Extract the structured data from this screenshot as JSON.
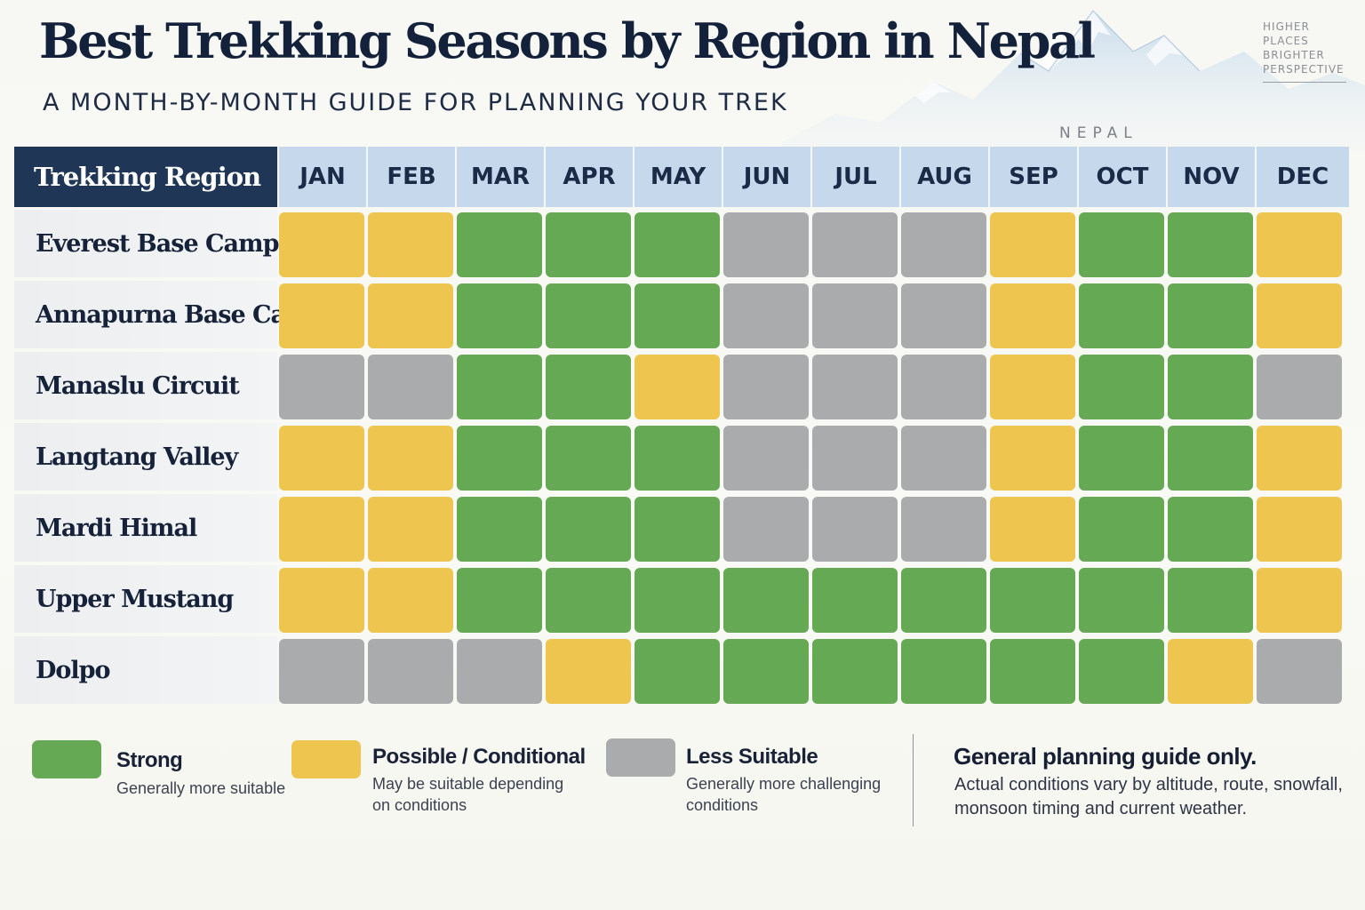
{
  "title": "Best Trekking Seasons by Region in Nepal",
  "subtitle": "A MONTH-BY-MONTH GUIDE FOR PLANNING YOUR TREK",
  "tagline": [
    "HIGHER",
    "PLACES",
    "BRIGHTER",
    "PERSPECTIVE"
  ],
  "backdrop_label": "NEPAL",
  "colors": {
    "strong": "#66a955",
    "possible": "#eec54f",
    "less": "#a9abad",
    "header_dark": "#203656",
    "header_light": "#c6d8ec"
  },
  "chart_data": {
    "type": "heatmap",
    "row_header": "Trekking Region",
    "columns": [
      "JAN",
      "FEB",
      "MAR",
      "APR",
      "MAY",
      "JUN",
      "JUL",
      "AUG",
      "SEP",
      "OCT",
      "NOV",
      "DEC"
    ],
    "rows": [
      {
        "region": "Everest Base Camp",
        "values": [
          "possible",
          "possible",
          "strong",
          "strong",
          "strong",
          "less",
          "less",
          "less",
          "possible",
          "strong",
          "strong",
          "possible"
        ]
      },
      {
        "region": "Annapurna Base Camp",
        "values": [
          "possible",
          "possible",
          "strong",
          "strong",
          "strong",
          "less",
          "less",
          "less",
          "possible",
          "strong",
          "strong",
          "possible"
        ]
      },
      {
        "region": "Manaslu Circuit",
        "values": [
          "less",
          "less",
          "strong",
          "strong",
          "possible",
          "less",
          "less",
          "less",
          "possible",
          "strong",
          "strong",
          "less"
        ]
      },
      {
        "region": "Langtang Valley",
        "values": [
          "possible",
          "possible",
          "strong",
          "strong",
          "strong",
          "less",
          "less",
          "less",
          "possible",
          "strong",
          "strong",
          "possible"
        ]
      },
      {
        "region": "Mardi Himal",
        "values": [
          "possible",
          "possible",
          "strong",
          "strong",
          "strong",
          "less",
          "less",
          "less",
          "possible",
          "strong",
          "strong",
          "possible"
        ]
      },
      {
        "region": "Upper Mustang",
        "values": [
          "possible",
          "possible",
          "strong",
          "strong",
          "strong",
          "strong",
          "strong",
          "strong",
          "strong",
          "strong",
          "strong",
          "possible"
        ]
      },
      {
        "region": "Dolpo",
        "values": [
          "less",
          "less",
          "less",
          "possible",
          "strong",
          "strong",
          "strong",
          "strong",
          "strong",
          "strong",
          "possible",
          "less"
        ]
      }
    ]
  },
  "legend": [
    {
      "key": "strong",
      "title": "Strong",
      "description": "Generally more suitable"
    },
    {
      "key": "possible",
      "title": "Possible / Conditional",
      "description": "May be suitable depending on conditions"
    },
    {
      "key": "less",
      "title": "Less Suitable",
      "description": "Generally more challenging conditions"
    }
  ],
  "note": {
    "title": "General planning guide only.",
    "body": "Actual conditions vary by altitude, route, snowfall, monsoon timing and current weather."
  }
}
